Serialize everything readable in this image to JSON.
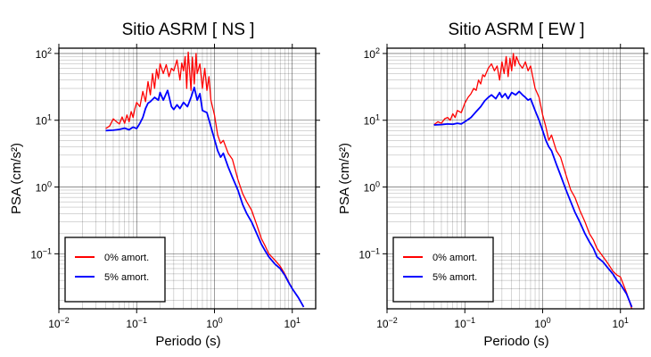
{
  "chart_data": [
    {
      "type": "line",
      "title": "Sitio ASRM [ NS ]",
      "xlabel": "Periodo (s)",
      "ylabel": "PSA (cm/s²)",
      "xscale": "log",
      "yscale": "log",
      "xlim": [
        0.01,
        20
      ],
      "ylim": [
        0.015,
        120
      ],
      "grid": true,
      "legend_position": "bottom-left",
      "x_ticks": [
        {
          "base": "10",
          "exp": "−2"
        },
        {
          "base": "10",
          "exp": "−1"
        },
        {
          "base": "10",
          "exp": "0"
        },
        {
          "base": "10",
          "exp": "1"
        }
      ],
      "y_ticks": [
        {
          "base": "10",
          "exp": "−1"
        },
        {
          "base": "10",
          "exp": "0"
        },
        {
          "base": "10",
          "exp": "1"
        },
        {
          "base": "10",
          "exp": "2"
        }
      ],
      "series": [
        {
          "name": "0% amort.",
          "color": "#ff0000",
          "x": [
            0.04,
            0.045,
            0.05,
            0.055,
            0.06,
            0.065,
            0.07,
            0.075,
            0.08,
            0.085,
            0.09,
            0.095,
            0.1,
            0.11,
            0.12,
            0.13,
            0.14,
            0.15,
            0.16,
            0.17,
            0.18,
            0.19,
            0.2,
            0.22,
            0.24,
            0.26,
            0.28,
            0.3,
            0.33,
            0.36,
            0.38,
            0.4,
            0.42,
            0.44,
            0.46,
            0.5,
            0.52,
            0.55,
            0.58,
            0.6,
            0.65,
            0.7,
            0.75,
            0.8,
            0.85,
            0.9,
            1.0,
            1.1,
            1.2,
            1.3,
            1.5,
            1.7,
            2.0,
            2.3,
            2.6,
            3.0,
            3.5,
            4.0,
            4.5,
            5.0,
            6.0,
            7.0,
            8.0,
            9.0,
            10.0,
            12.0,
            14.0
          ],
          "y": [
            7.5,
            8.2,
            10.5,
            9.5,
            8.8,
            11.2,
            9.0,
            12.0,
            9.5,
            13.5,
            11.0,
            15.0,
            18.5,
            16.0,
            27.0,
            19.0,
            38.0,
            24.0,
            50.0,
            30.0,
            58.0,
            42.0,
            70.0,
            50.0,
            68.0,
            45.0,
            60.0,
            55.0,
            80.0,
            40.0,
            72.0,
            55.0,
            90.0,
            30.0,
            105.0,
            28.0,
            88.0,
            35.0,
            100.0,
            50.0,
            70.0,
            30.0,
            60.0,
            28.0,
            45.0,
            20.0,
            12.0,
            6.0,
            4.5,
            5.0,
            3.2,
            2.6,
            1.3,
            0.8,
            0.6,
            0.45,
            0.27,
            0.17,
            0.13,
            0.1,
            0.08,
            0.065,
            0.05,
            0.038,
            0.03,
            0.022,
            0.016
          ]
        },
        {
          "name": "5% amort.",
          "color": "#0000ff",
          "x": [
            0.04,
            0.05,
            0.06,
            0.07,
            0.08,
            0.09,
            0.1,
            0.11,
            0.12,
            0.13,
            0.14,
            0.15,
            0.17,
            0.19,
            0.2,
            0.22,
            0.25,
            0.28,
            0.3,
            0.33,
            0.36,
            0.4,
            0.45,
            0.5,
            0.55,
            0.6,
            0.65,
            0.7,
            0.8,
            0.9,
            1.0,
            1.1,
            1.2,
            1.3,
            1.5,
            1.7,
            2.0,
            2.3,
            2.6,
            3.0,
            3.5,
            4.0,
            4.5,
            5.0,
            6.0,
            7.0,
            8.0,
            9.0,
            10.0,
            12.0,
            14.0
          ],
          "y": [
            7.0,
            7.1,
            7.3,
            7.6,
            7.2,
            7.9,
            7.5,
            9.0,
            11.0,
            15.0,
            18.0,
            19.0,
            22.0,
            20.0,
            26.0,
            20.0,
            28.0,
            16.0,
            14.5,
            17.0,
            15.0,
            18.5,
            16.0,
            22.0,
            31.0,
            20.0,
            25.0,
            14.0,
            13.0,
            8.0,
            5.2,
            3.5,
            2.8,
            3.2,
            2.0,
            1.4,
            0.9,
            0.55,
            0.4,
            0.3,
            0.2,
            0.14,
            0.11,
            0.09,
            0.07,
            0.06,
            0.048,
            0.037,
            0.03,
            0.022,
            0.016
          ]
        }
      ]
    },
    {
      "type": "line",
      "title": "Sitio ASRM [ EW ]",
      "xlabel": "Periodo (s)",
      "ylabel": "PSA (cm/s²)",
      "xscale": "log",
      "yscale": "log",
      "xlim": [
        0.01,
        20
      ],
      "ylim": [
        0.015,
        120
      ],
      "grid": true,
      "legend_position": "bottom-left",
      "x_ticks": [
        {
          "base": "10",
          "exp": "−2"
        },
        {
          "base": "10",
          "exp": "−1"
        },
        {
          "base": "10",
          "exp": "0"
        },
        {
          "base": "10",
          "exp": "1"
        }
      ],
      "y_ticks": [
        {
          "base": "10",
          "exp": "−1"
        },
        {
          "base": "10",
          "exp": "0"
        },
        {
          "base": "10",
          "exp": "1"
        },
        {
          "base": "10",
          "exp": "2"
        }
      ],
      "series": [
        {
          "name": "0% amort.",
          "color": "#ff0000",
          "x": [
            0.04,
            0.045,
            0.05,
            0.055,
            0.06,
            0.065,
            0.07,
            0.075,
            0.08,
            0.09,
            0.1,
            0.11,
            0.12,
            0.13,
            0.14,
            0.15,
            0.16,
            0.17,
            0.18,
            0.2,
            0.22,
            0.24,
            0.26,
            0.28,
            0.3,
            0.32,
            0.34,
            0.36,
            0.38,
            0.4,
            0.42,
            0.44,
            0.46,
            0.5,
            0.55,
            0.6,
            0.65,
            0.7,
            0.8,
            0.9,
            1.0,
            1.1,
            1.2,
            1.3,
            1.5,
            1.7,
            2.0,
            2.3,
            2.6,
            3.0,
            3.5,
            4.0,
            4.5,
            5.0,
            6.0,
            7.0,
            8.0,
            9.0,
            10.0,
            12.0,
            14.0
          ],
          "y": [
            8.5,
            9.5,
            9.0,
            10.5,
            11.0,
            10.0,
            12.5,
            11.0,
            14.0,
            13.0,
            18.0,
            22.0,
            25.0,
            30.0,
            28.0,
            40.0,
            35.0,
            48.0,
            45.0,
            60.0,
            70.0,
            55.0,
            65.0,
            40.0,
            75.0,
            50.0,
            90.0,
            45.0,
            85.0,
            55.0,
            100.0,
            65.0,
            90.0,
            70.0,
            60.0,
            75.0,
            55.0,
            65.0,
            30.0,
            22.0,
            12.0,
            8.0,
            5.0,
            6.0,
            3.5,
            2.8,
            1.5,
            0.9,
            0.7,
            0.45,
            0.3,
            0.2,
            0.16,
            0.12,
            0.09,
            0.07,
            0.055,
            0.048,
            0.045,
            0.026,
            0.015
          ]
        },
        {
          "name": "5% amort.",
          "color": "#0000ff",
          "x": [
            0.04,
            0.05,
            0.06,
            0.07,
            0.08,
            0.09,
            0.1,
            0.12,
            0.14,
            0.16,
            0.18,
            0.2,
            0.22,
            0.25,
            0.28,
            0.3,
            0.33,
            0.36,
            0.4,
            0.45,
            0.5,
            0.55,
            0.6,
            0.65,
            0.7,
            0.8,
            0.9,
            1.0,
            1.1,
            1.2,
            1.3,
            1.5,
            1.7,
            2.0,
            2.3,
            2.6,
            3.0,
            3.5,
            4.0,
            4.5,
            5.0,
            6.0,
            7.0,
            8.0,
            9.0,
            10.0,
            12.0,
            14.0
          ],
          "y": [
            8.5,
            8.6,
            8.8,
            8.7,
            9.0,
            8.8,
            9.5,
            11.0,
            13.5,
            16.0,
            19.5,
            22.0,
            24.0,
            21.0,
            26.0,
            22.0,
            25.0,
            21.0,
            26.0,
            24.0,
            27.0,
            24.0,
            22.0,
            20.0,
            21.0,
            14.0,
            10.0,
            7.0,
            5.0,
            4.0,
            3.5,
            2.2,
            1.5,
            0.9,
            0.6,
            0.42,
            0.3,
            0.2,
            0.15,
            0.12,
            0.09,
            0.075,
            0.06,
            0.05,
            0.04,
            0.035,
            0.025,
            0.016
          ]
        }
      ]
    }
  ]
}
